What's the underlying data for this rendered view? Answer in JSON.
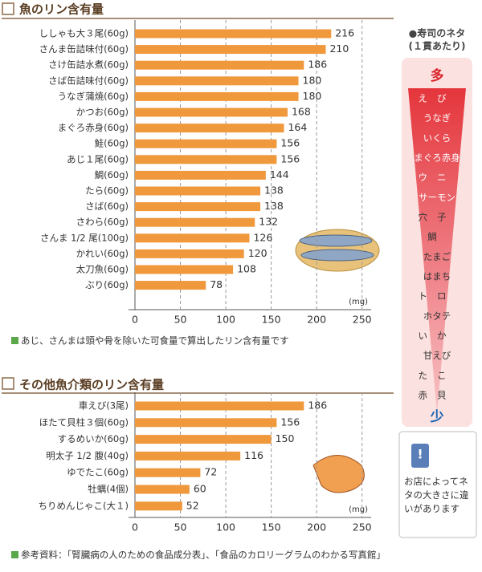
{
  "chart_data": [
    {
      "type": "bar",
      "orientation": "horizontal",
      "title": "魚のリン含有量",
      "categories": [
        "ししゃも大３尾(60g)",
        "さんま缶詰味付(60g)",
        "さけ缶詰水煮(60g)",
        "さば缶詰味付(60g)",
        "うなぎ蒲焼(60g)",
        "かつお(60g)",
        "まぐろ赤身(60g)",
        "鮭(60g)",
        "あじ１尾(60g)",
        "鯛(60g)",
        "たら(60g)",
        "さば(60g)",
        "さわら(60g)",
        "さんま 1/2 尾(100g)",
        "かれい(60g)",
        "太刀魚(60g)",
        "ぶり(60g)"
      ],
      "values": [
        216,
        210,
        186,
        180,
        180,
        168,
        164,
        156,
        156,
        144,
        138,
        138,
        132,
        126,
        120,
        108,
        78
      ],
      "color": "#f0983c",
      "xlim": [
        0,
        260
      ],
      "xticks": [
        0,
        50,
        100,
        150,
        200,
        250
      ],
      "grid": true,
      "x_label": "(mg)",
      "note": "あじ、さんまは頭や骨を除いた可食量で算出したリン含有量です"
    },
    {
      "type": "bar",
      "orientation": "horizontal",
      "title": "その他魚介類のリン含有量",
      "categories": [
        "車えび(3尾)",
        "ほたて貝柱３個(60g)",
        "するめいか(60g)",
        "明太子 1/2 腹(40g)",
        "ゆでたこ(60g)",
        "牡蠣(4個)",
        "ちりめんじゃこ(大１)"
      ],
      "values": [
        186,
        156,
        150,
        116,
        72,
        60,
        52
      ],
      "color": "#f0983c",
      "xlim": [
        0,
        260
      ],
      "xticks": [
        0,
        50,
        100,
        150,
        200,
        250
      ],
      "grid": true,
      "x_label": "(mg)"
    }
  ],
  "sidebar": {
    "title": "●寿司のネタ",
    "subtitle": "(１貫あたり)",
    "top": "多",
    "bottom": "少",
    "items": [
      "えび",
      "うなぎ",
      "いくら",
      "まぐろ赤身",
      "ウニ",
      "サーモン",
      "穴子",
      "鯛",
      "たまご",
      "はまち",
      "トロ",
      "ホタテ",
      "いか",
      "甘えび",
      "たこ",
      "赤貝"
    ],
    "note": "お店によってネタの大きさに違いがあります"
  },
  "footer": "参考資料：「腎臓病の人のための食品成分表」、「食品のカロリーグラムのわかる写真館」"
}
